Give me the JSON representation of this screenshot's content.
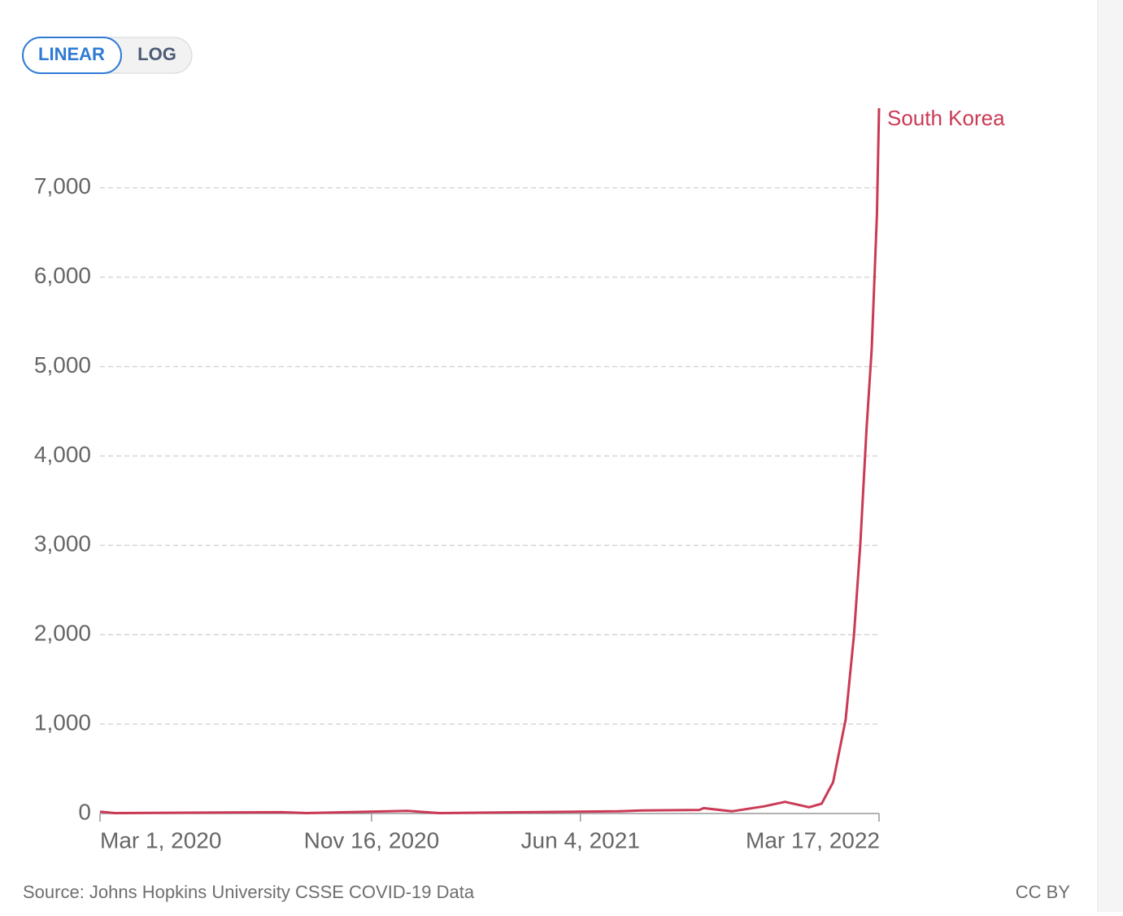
{
  "chart_data": {
    "type": "line",
    "scale_buttons": [
      "LINEAR",
      "LOG"
    ],
    "log_scale": false,
    "x": [
      "2020-03-01",
      "2020-03-15",
      "2020-08-22",
      "2020-09-15",
      "2020-12-20",
      "2021-01-20",
      "2021-04-15",
      "2021-07-10",
      "2021-08-02",
      "2021-09-26",
      "2021-09-30",
      "2021-10-27",
      "2021-11-27",
      "2021-12-17",
      "2022-01-09",
      "2022-01-21",
      "2022-02-01",
      "2022-02-13",
      "2022-02-21",
      "2022-02-27",
      "2022-03-05",
      "2022-03-10",
      "2022-03-15",
      "2022-03-17"
    ],
    "series": [
      {
        "name": "South Korea",
        "color": "#ca3a55",
        "values": [
          20,
          5,
          15,
          5,
          30,
          5,
          15,
          25,
          35,
          40,
          60,
          25,
          80,
          130,
          70,
          110,
          350,
          1050,
          2000,
          3000,
          4300,
          5200,
          6700,
          7890
        ]
      }
    ],
    "xlim": [
      "2020-03-01",
      "2022-03-17"
    ],
    "xticks": [
      {
        "value": "2020-03-01",
        "label": "Mar 1, 2020"
      },
      {
        "value": "2020-11-16",
        "label": "Nov 16, 2020"
      },
      {
        "value": "2021-06-04",
        "label": "Jun 4, 2021"
      },
      {
        "value": "2022-03-17",
        "label": "Mar 17, 2022"
      }
    ],
    "ylim": [
      0,
      7890
    ],
    "yticks": [
      0,
      {
        "value": 1000,
        "label": "1,000"
      },
      {
        "value": 2000,
        "label": "2,000"
      },
      {
        "value": 3000,
        "label": "3,000"
      },
      {
        "value": 4000,
        "label": "4,000"
      },
      {
        "value": 5000,
        "label": "5,000"
      },
      {
        "value": 6000,
        "label": "6,000"
      },
      {
        "value": 7000,
        "label": "7,000"
      }
    ],
    "grid": true,
    "source": "Source: Johns Hopkins University CSSE COVID-19 Data",
    "license": "CC BY"
  }
}
